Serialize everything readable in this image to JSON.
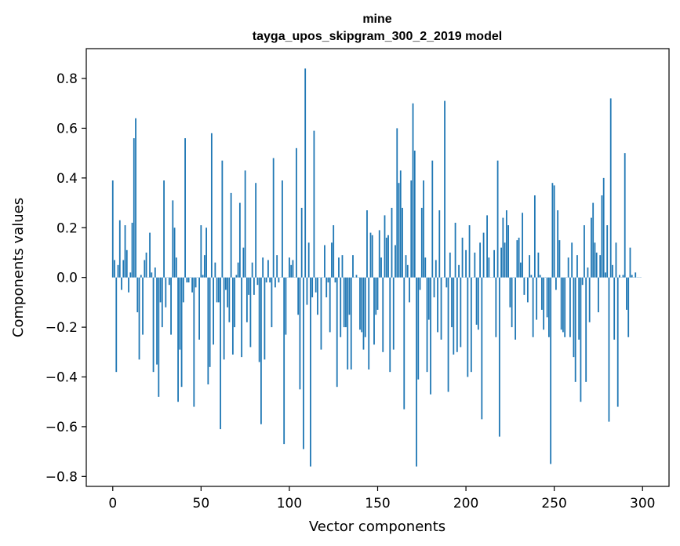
{
  "chart_data": {
    "type": "bar",
    "title": "mine",
    "subtitle": "tayga_upos_skipgram_300_2_2019 model",
    "xlabel": "Vector components",
    "ylabel": "Components values",
    "xlim": [
      -15,
      315
    ],
    "ylim": [
      -0.84,
      0.92
    ],
    "xticks": [
      0,
      50,
      100,
      150,
      200,
      250,
      300
    ],
    "yticks": [
      -0.8,
      -0.6,
      -0.4,
      -0.2,
      0.0,
      0.2,
      0.4,
      0.6,
      0.8
    ],
    "xtick_labels": [
      "0",
      "50",
      "100",
      "150",
      "200",
      "250",
      "300"
    ],
    "ytick_labels": [
      "−0.8",
      "−0.6",
      "−0.4",
      "−0.2",
      "0.0",
      "0.2",
      "0.4",
      "0.6",
      "0.8"
    ],
    "bar_color": "#1f77b4",
    "grid": false,
    "values": [
      0.39,
      0.07,
      -0.38,
      0.05,
      0.23,
      -0.05,
      0.07,
      0.21,
      0.11,
      -0.06,
      0.02,
      0.22,
      0.56,
      0.64,
      -0.14,
      -0.33,
      0.01,
      -0.23,
      0.07,
      0.1,
      0.0,
      0.18,
      0.02,
      -0.38,
      0.04,
      -0.35,
      -0.48,
      -0.1,
      -0.2,
      0.39,
      -0.12,
      0.0,
      -0.03,
      -0.23,
      0.31,
      0.2,
      0.08,
      -0.5,
      -0.29,
      -0.44,
      -0.1,
      0.56,
      -0.02,
      -0.02,
      0.0,
      -0.06,
      -0.52,
      -0.04,
      0.0,
      -0.25,
      0.21,
      0.01,
      0.09,
      0.2,
      -0.43,
      -0.36,
      0.58,
      -0.27,
      0.06,
      -0.1,
      -0.1,
      -0.61,
      0.47,
      -0.33,
      -0.05,
      -0.12,
      -0.18,
      0.34,
      -0.31,
      -0.2,
      0.01,
      0.06,
      0.3,
      -0.32,
      0.12,
      0.43,
      -0.18,
      -0.07,
      -0.28,
      0.06,
      -0.07,
      0.38,
      -0.03,
      -0.34,
      -0.59,
      0.08,
      -0.33,
      -0.02,
      0.07,
      -0.02,
      -0.2,
      0.48,
      -0.04,
      0.09,
      -0.02,
      0.0,
      0.39,
      -0.67,
      -0.23,
      0.0,
      0.08,
      0.05,
      0.07,
      0.0,
      0.52,
      -0.15,
      -0.45,
      0.28,
      -0.69,
      0.84,
      -0.11,
      0.14,
      -0.76,
      -0.08,
      0.59,
      -0.06,
      -0.15,
      0.0,
      -0.29,
      0.0,
      0.13,
      -0.08,
      -0.02,
      -0.22,
      0.14,
      0.21,
      -0.02,
      -0.44,
      0.08,
      -0.24,
      0.09,
      -0.2,
      -0.2,
      -0.37,
      -0.15,
      -0.37,
      0.09,
      0.0,
      0.01,
      0.0,
      -0.21,
      -0.22,
      -0.29,
      -0.24,
      0.27,
      -0.37,
      0.18,
      0.17,
      -0.27,
      -0.15,
      -0.13,
      0.19,
      0.08,
      -0.3,
      0.25,
      0.16,
      0.17,
      -0.38,
      0.28,
      -0.29,
      0.13,
      0.6,
      0.38,
      0.43,
      0.28,
      -0.53,
      0.09,
      0.05,
      -0.1,
      0.39,
      0.7,
      0.51,
      -0.76,
      -0.41,
      -0.05,
      0.28,
      0.39,
      0.08,
      -0.38,
      -0.17,
      -0.47,
      0.47,
      -0.08,
      0.07,
      -0.22,
      0.27,
      -0.25,
      0.0,
      0.71,
      -0.04,
      -0.46,
      0.1,
      -0.2,
      -0.31,
      0.22,
      -0.3,
      0.05,
      -0.28,
      0.16,
      0.0,
      0.11,
      -0.4,
      0.21,
      -0.38,
      0.0,
      0.1,
      -0.19,
      -0.21,
      0.14,
      -0.57,
      0.18,
      0.0,
      0.25,
      0.08,
      0.0,
      0.0,
      0.11,
      -0.24,
      0.47,
      -0.64,
      0.12,
      0.24,
      0.14,
      0.27,
      0.21,
      -0.12,
      -0.2,
      0.0,
      -0.25,
      0.15,
      0.16,
      0.06,
      0.26,
      -0.07,
      0.0,
      -0.1,
      0.09,
      0.01,
      -0.24,
      0.33,
      -0.17,
      0.1,
      0.01,
      -0.13,
      -0.21,
      0.0,
      -0.16,
      -0.24,
      -0.75,
      0.38,
      0.37,
      -0.05,
      0.27,
      0.15,
      -0.21,
      -0.22,
      -0.24,
      0.0,
      0.08,
      -0.24,
      0.14,
      -0.32,
      -0.42,
      0.09,
      -0.25,
      -0.5,
      -0.03,
      0.21,
      -0.42,
      0.04,
      -0.18,
      0.24,
      0.3,
      0.14,
      0.1,
      -0.14,
      0.09,
      0.33,
      0.4,
      0.02,
      0.21,
      -0.58,
      0.72,
      0.05,
      -0.25,
      0.14,
      -0.52,
      0.01,
      0.0,
      0.01,
      0.5,
      -0.13,
      -0.24,
      0.12,
      0.01,
      0.0,
      0.02,
      0.0,
      0.0,
      0.0
    ]
  }
}
